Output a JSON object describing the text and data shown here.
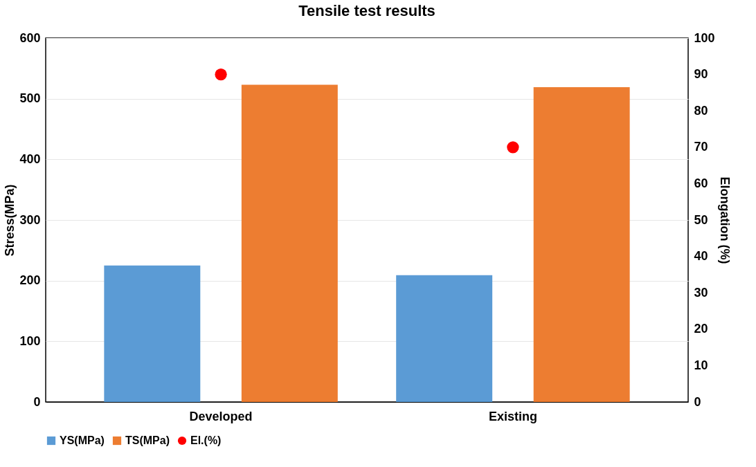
{
  "chart_data": {
    "type": "bar",
    "title": "Tensile test results",
    "categories": [
      "Developed",
      "Existing"
    ],
    "ylabel": "Stress(MPa)",
    "y2label": "Elongation (%)",
    "ylim": [
      0,
      600
    ],
    "yticks": [
      0,
      100,
      200,
      300,
      400,
      500,
      600
    ],
    "y2lim": [
      0,
      100
    ],
    "y2ticks": [
      0,
      10,
      20,
      30,
      40,
      50,
      60,
      70,
      80,
      90,
      100
    ],
    "grid": "y",
    "legend": "bottom",
    "series": [
      {
        "name": "YS(MPa)",
        "color": "#5b9bd5",
        "values": [
          225,
          209
        ]
      },
      {
        "name": "TS(MPa)",
        "color": "#ed7d31",
        "values": [
          523,
          519
        ]
      },
      {
        "name": "El.(%)",
        "type": "scatter",
        "axis": "y2",
        "marker": "circle",
        "color": "#ff0000",
        "values": [
          90,
          70
        ]
      }
    ]
  }
}
